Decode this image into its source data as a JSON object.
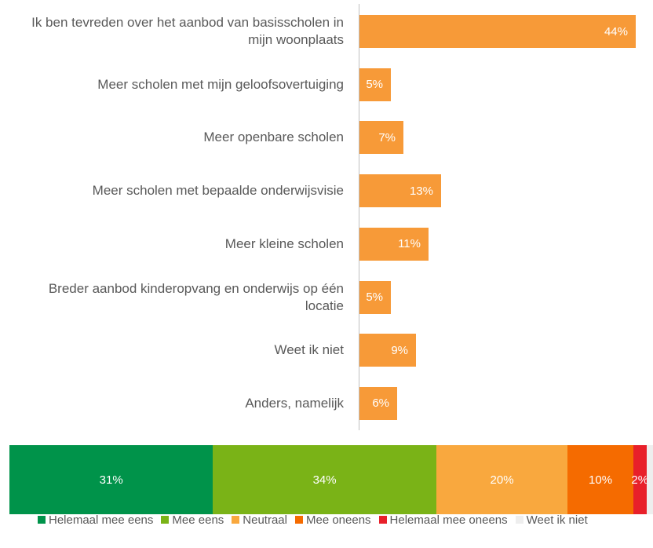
{
  "chart_data": [
    {
      "type": "hbar",
      "categories": [
        "Ik ben tevreden over het aanbod van basisscholen in mijn woonplaats",
        "Meer scholen met mijn  geloofsovertuiging",
        "Meer openbare scholen",
        "Meer scholen met bepaalde onderwijsvisie",
        "Meer kleine scholen",
        "Breder aanbod kinderopvang en onderwijs op één locatie",
        "Weet ik niet",
        "Anders, namelijk"
      ],
      "values": [
        44,
        5,
        7,
        13,
        11,
        5,
        9,
        6
      ],
      "value_labels": [
        "44%",
        "5%",
        "7%",
        "13%",
        "11%",
        "5%",
        "9%",
        "6%"
      ],
      "color": "#f79a38"
    },
    {
      "type": "stacked100",
      "series": [
        {
          "name": "Helemaal mee eens",
          "color": "#00934a",
          "values": [
            31
          ],
          "value_labels": [
            "31%"
          ]
        },
        {
          "name": "Mee eens",
          "color": "#7ab317",
          "values": [
            34
          ],
          "value_labels": [
            "34%"
          ]
        },
        {
          "name": "Neutraal",
          "color": "#f9a83e",
          "values": [
            20
          ],
          "value_labels": [
            "20%"
          ]
        },
        {
          "name": "Mee oneens",
          "color": "#f56b00",
          "values": [
            10
          ],
          "value_labels": [
            "10%"
          ]
        },
        {
          "name": "Helemaal mee oneens",
          "color": "#e8202a",
          "values": [
            2
          ],
          "value_labels": [
            "2%"
          ]
        },
        {
          "name": "Weet ik niet",
          "color": "#eeeeee",
          "values": [
            1
          ],
          "value_labels": [
            null
          ]
        }
      ],
      "legend": "bottom"
    }
  ]
}
